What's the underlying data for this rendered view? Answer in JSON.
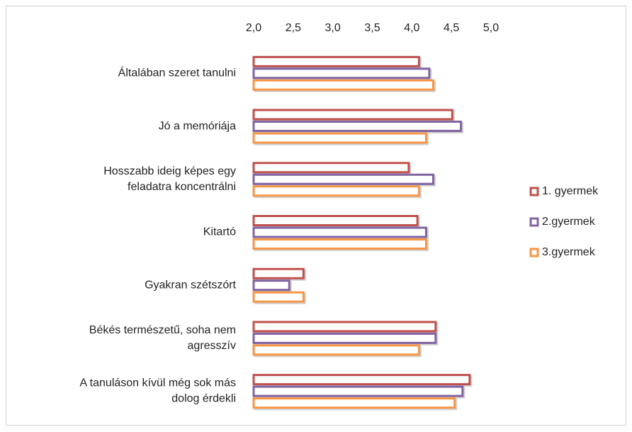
{
  "chart_data": {
    "type": "bar",
    "orientation": "horizontal",
    "categories": [
      "Általában szeret tanulni",
      "Jó a memóriája",
      "Hosszabb ideig képes egy\nfeladatra koncentrálni",
      "Kitartó",
      "Gyakran szétszórt",
      "Békés természetű, soha nem\nagresszív",
      "A tanuláson kívül még sok más\ndolog érdekli"
    ],
    "series": [
      {
        "name": "1. gyermek",
        "color": "#c0504d",
        "values": [
          4.09,
          4.51,
          3.96,
          4.07,
          2.63,
          4.3,
          4.73
        ]
      },
      {
        "name": "2.gyermek",
        "color": "#8064a2",
        "values": [
          4.22,
          4.62,
          4.27,
          4.18,
          2.45,
          4.3,
          4.64
        ]
      },
      {
        "name": "3.gyermek",
        "color": "#f79646",
        "values": [
          4.27,
          4.18,
          4.09,
          4.18,
          2.63,
          4.09,
          4.54
        ]
      }
    ],
    "xlim": [
      2,
      5
    ],
    "xticks": [
      {
        "value": 2,
        "label": "2,0"
      },
      {
        "value": 2.5,
        "label": "2,5"
      },
      {
        "value": 3,
        "label": "3,0"
      },
      {
        "value": 3.5,
        "label": "3,5"
      },
      {
        "value": 4,
        "label": "4,0"
      },
      {
        "value": 4.5,
        "label": "4,5"
      },
      {
        "value": 5,
        "label": "5,0"
      }
    ],
    "grid": false,
    "legend": "right"
  }
}
